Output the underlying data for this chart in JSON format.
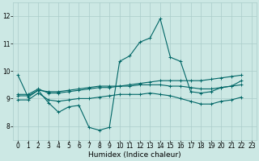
{
  "xlabel": "Humidex (Indice chaleur)",
  "bg_color": "#cce8e4",
  "grid_color": "#aaccca",
  "line_color": "#006666",
  "xlim": [
    -0.5,
    23.5
  ],
  "ylim": [
    7.5,
    12.5
  ],
  "yticks": [
    8,
    9,
    10,
    11,
    12
  ],
  "xticks": [
    0,
    1,
    2,
    3,
    4,
    5,
    6,
    7,
    8,
    9,
    10,
    11,
    12,
    13,
    14,
    15,
    16,
    17,
    18,
    19,
    20,
    21,
    22,
    23
  ],
  "series1_x": [
    0,
    1,
    2,
    3,
    4,
    5,
    6,
    7,
    8,
    9,
    10,
    11,
    12,
    13,
    14,
    15,
    16,
    17,
    18,
    19,
    20,
    21,
    22
  ],
  "series1_y": [
    9.85,
    9.05,
    9.3,
    8.85,
    8.5,
    8.7,
    8.75,
    7.95,
    7.85,
    7.95,
    10.35,
    10.55,
    11.05,
    11.2,
    11.9,
    10.5,
    10.35,
    9.25,
    9.2,
    9.25,
    9.4,
    9.45,
    9.65
  ],
  "series2_x": [
    0,
    1,
    2,
    3,
    4,
    5,
    6,
    7,
    8,
    9,
    10,
    11,
    12,
    13,
    14,
    15,
    16,
    17,
    18,
    19,
    20,
    21,
    22
  ],
  "series2_y": [
    9.15,
    9.15,
    9.35,
    9.2,
    9.2,
    9.25,
    9.3,
    9.35,
    9.4,
    9.4,
    9.45,
    9.5,
    9.55,
    9.6,
    9.65,
    9.65,
    9.65,
    9.65,
    9.65,
    9.7,
    9.75,
    9.8,
    9.85
  ],
  "series3_x": [
    0,
    1,
    2,
    3,
    4,
    5,
    6,
    7,
    8,
    9,
    10,
    11,
    12,
    13,
    14,
    15,
    16,
    17,
    18,
    19,
    20,
    21,
    22
  ],
  "series3_y": [
    9.1,
    9.1,
    9.3,
    9.25,
    9.25,
    9.3,
    9.35,
    9.4,
    9.45,
    9.45,
    9.45,
    9.45,
    9.5,
    9.5,
    9.5,
    9.45,
    9.45,
    9.4,
    9.35,
    9.35,
    9.4,
    9.45,
    9.5
  ],
  "series4_x": [
    0,
    1,
    2,
    3,
    4,
    5,
    6,
    7,
    8,
    9,
    10,
    11,
    12,
    13,
    14,
    15,
    16,
    17,
    18,
    19,
    20,
    21,
    22
  ],
  "series4_y": [
    8.95,
    8.95,
    9.2,
    8.95,
    8.9,
    8.95,
    9.0,
    9.0,
    9.05,
    9.1,
    9.15,
    9.15,
    9.15,
    9.2,
    9.15,
    9.1,
    9.0,
    8.9,
    8.8,
    8.8,
    8.9,
    8.95,
    9.05
  ]
}
